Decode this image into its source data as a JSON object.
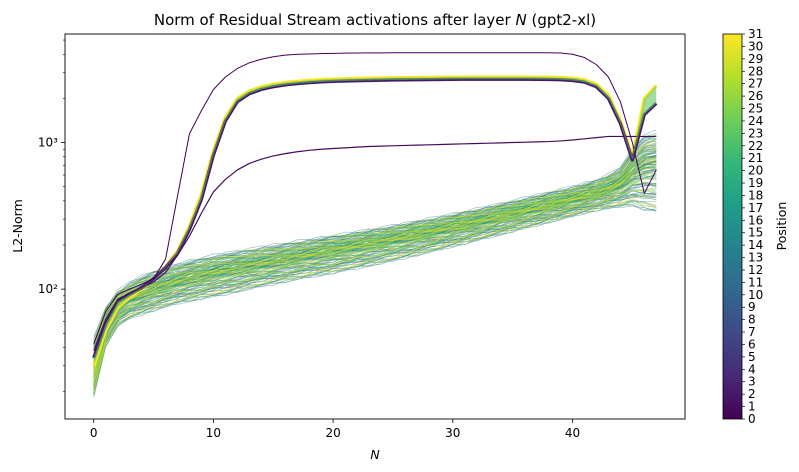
{
  "chart_data": {
    "type": "line",
    "title_prefix": "Norm of Residual Stream activations after layer ",
    "title_var": "N",
    "title_suffix": " (gpt2-xl)",
    "xlabel": "N",
    "ylabel": "L2-Norm",
    "yscale": "log",
    "xlim": [
      -2.4,
      49.4
    ],
    "ylim": [
      13,
      5500
    ],
    "x_ticks": [
      0,
      10,
      20,
      30,
      40
    ],
    "x_tick_labels": [
      "0",
      "10",
      "20",
      "30",
      "40"
    ],
    "y_ticks": [
      100,
      1000
    ],
    "y_tick_labels": [
      "10²",
      "10³"
    ],
    "x": [
      0,
      1,
      2,
      3,
      4,
      5,
      6,
      7,
      8,
      9,
      10,
      11,
      12,
      13,
      14,
      15,
      16,
      17,
      18,
      19,
      20,
      21,
      22,
      23,
      24,
      25,
      26,
      27,
      28,
      29,
      30,
      31,
      32,
      33,
      34,
      35,
      36,
      37,
      38,
      39,
      40,
      41,
      42,
      43,
      44,
      45,
      46,
      47
    ],
    "colorbar": {
      "label": "Position",
      "ticks": [
        0,
        1,
        2,
        3,
        4,
        5,
        6,
        7,
        8,
        9,
        10,
        11,
        12,
        13,
        14,
        15,
        16,
        17,
        18,
        19,
        20,
        21,
        22,
        23,
        24,
        25,
        26,
        27,
        28,
        29,
        30,
        31
      ],
      "range": [
        0,
        31
      ],
      "colormap": "viridis"
    },
    "colors": {
      "viridis": [
        "#440154",
        "#482878",
        "#3e4989",
        "#31688e",
        "#26828e",
        "#1f9e89",
        "#35b779",
        "#6ece58",
        "#b5de2b",
        "#fde725"
      ]
    },
    "series": [
      {
        "position": 0,
        "values": [
          42,
          70,
          92,
          100,
          108,
          118,
          160,
          430,
          1150,
          1650,
          2300,
          2800,
          3200,
          3500,
          3700,
          3850,
          3950,
          4000,
          4020,
          4040,
          4060,
          4070,
          4080,
          4090,
          4090,
          4100,
          4100,
          4100,
          4100,
          4100,
          4100,
          4100,
          4100,
          4100,
          4100,
          4100,
          4100,
          4100,
          4100,
          4080,
          4000,
          3800,
          3400,
          2800,
          1900,
          1000,
          450,
          650
        ]
      },
      {
        "position": 1,
        "values": [
          38,
          62,
          85,
          94,
          102,
          112,
          130,
          170,
          230,
          330,
          460,
          560,
          650,
          720,
          770,
          810,
          840,
          865,
          885,
          900,
          910,
          920,
          930,
          940,
          945,
          950,
          955,
          960,
          965,
          970,
          975,
          980,
          985,
          990,
          995,
          1000,
          1005,
          1010,
          1015,
          1025,
          1040,
          1060,
          1080,
          1100,
          1100,
          1100,
          1100,
          1100
        ]
      },
      {
        "position": 2,
        "values": [
          34,
          58,
          82,
          92,
          102,
          118,
          140,
          175,
          255,
          410,
          820,
          1400,
          1900,
          2150,
          2300,
          2400,
          2470,
          2520,
          2560,
          2590,
          2610,
          2630,
          2640,
          2650,
          2660,
          2670,
          2675,
          2680,
          2685,
          2690,
          2695,
          2700,
          2700,
          2700,
          2700,
          2700,
          2700,
          2695,
          2690,
          2680,
          2650,
          2580,
          2400,
          2000,
          1350,
          760,
          1550,
          1850
        ]
      },
      {
        "position": 31,
        "values": [
          30,
          52,
          75,
          88,
          100,
          118,
          142,
          182,
          270,
          445,
          880,
          1480,
          2000,
          2250,
          2400,
          2500,
          2570,
          2620,
          2660,
          2690,
          2710,
          2730,
          2740,
          2750,
          2760,
          2770,
          2775,
          2780,
          2785,
          2790,
          2795,
          2800,
          2800,
          2800,
          2800,
          2800,
          2800,
          2795,
          2790,
          2780,
          2750,
          2680,
          2500,
          2100,
          1420,
          800,
          2000,
          2450
        ]
      }
    ],
    "band": {
      "label_note": "",
      "min": [
        18,
        40,
        55,
        62,
        66,
        70,
        74,
        78,
        81,
        84,
        87,
        90,
        94,
        98,
        102,
        106,
        110,
        114,
        118,
        122,
        126,
        131,
        136,
        141,
        147,
        153,
        160,
        167,
        175,
        183,
        192,
        201,
        211,
        221,
        232,
        244,
        256,
        268,
        281,
        295,
        310,
        325,
        340,
        350,
        355,
        360,
        330,
        320
      ],
      "max": [
        48,
        76,
        98,
        112,
        124,
        134,
        142,
        150,
        158,
        165,
        172,
        178,
        184,
        190,
        196,
        202,
        208,
        214,
        220,
        227,
        234,
        241,
        249,
        257,
        265,
        274,
        284,
        294,
        305,
        316,
        328,
        341,
        355,
        370,
        386,
        403,
        421,
        440,
        460,
        482,
        505,
        530,
        560,
        610,
        680,
        920,
        1150,
        1220
      ],
      "center": [
        27,
        56,
        76,
        86,
        93,
        100,
        106,
        112,
        118,
        123,
        128,
        133,
        138,
        143,
        148,
        153,
        158,
        164,
        170,
        176,
        182,
        188,
        195,
        202,
        209,
        217,
        225,
        234,
        243,
        253,
        263,
        274,
        286,
        298,
        311,
        325,
        340,
        356,
        372,
        390,
        408,
        428,
        450,
        480,
        520,
        620,
        700,
        720
      ]
    }
  }
}
